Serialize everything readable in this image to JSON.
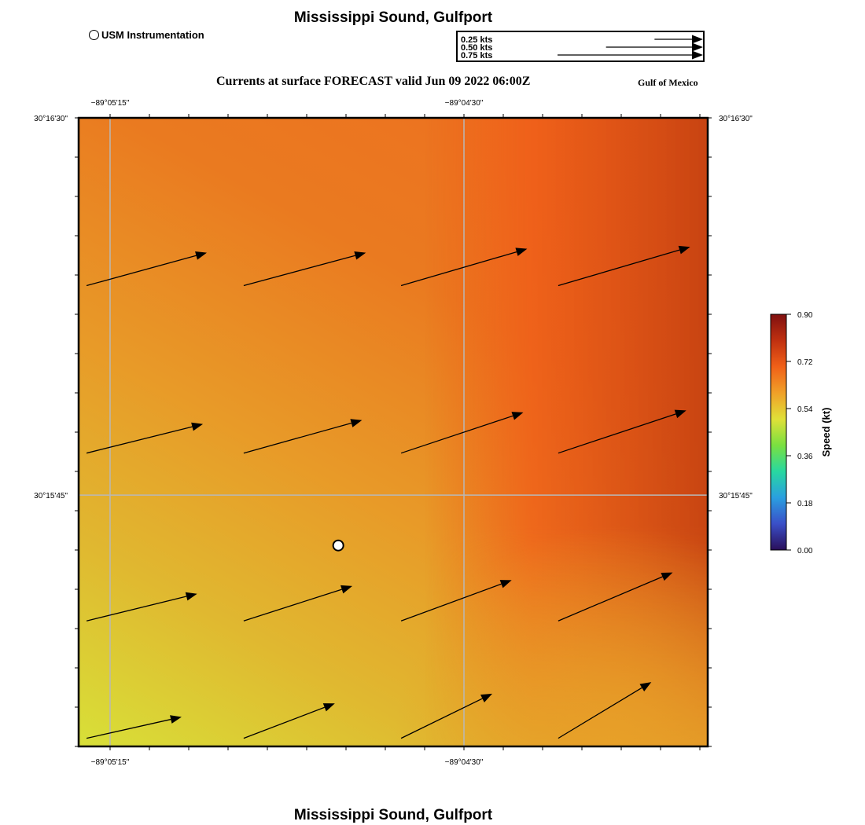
{
  "header": {
    "title": "Mississippi Sound, Gulfport",
    "legend_label": "USM Instrumentation",
    "forecast_title": "Currents at surface FORECAST valid Jun 09 2022 06:00Z",
    "region": "Gulf of Mexico"
  },
  "scale_legend": {
    "entries": [
      {
        "label": "0.25 kts",
        "value": 0.25
      },
      {
        "label": "0.50 kts",
        "value": 0.5
      },
      {
        "label": "0.75 kts",
        "value": 0.75
      }
    ]
  },
  "map": {
    "lon_ticks": [
      {
        "label": "−89°05'15\"",
        "lon": -89.0875
      },
      {
        "label": "−89°04'30\"",
        "lon": -89.075
      }
    ],
    "lat_ticks": [
      {
        "label": "30°16'30\"",
        "lat": 30.275
      },
      {
        "label": "30°15'45\"",
        "lat": 30.2625
      }
    ],
    "lon_range": [
      -89.08861,
      -89.06639
    ],
    "lat_range": [
      30.25417,
      30.275
    ],
    "station": {
      "name": "USM Instrumentation",
      "lon": -89.07944,
      "lat": 30.26083
    },
    "vector_scale_ref_kt": 0.75,
    "vectors": [
      {
        "lon": -89.08833,
        "lat": 30.26944,
        "u": 0.62,
        "v": 0.17
      },
      {
        "lon": -89.08278,
        "lat": 30.26944,
        "u": 0.63,
        "v": 0.17
      },
      {
        "lon": -89.07722,
        "lat": 30.26944,
        "u": 0.65,
        "v": 0.19
      },
      {
        "lon": -89.07167,
        "lat": 30.26944,
        "u": 0.68,
        "v": 0.2
      },
      {
        "lon": -89.08833,
        "lat": 30.26389,
        "u": 0.6,
        "v": 0.15
      },
      {
        "lon": -89.08278,
        "lat": 30.26389,
        "u": 0.61,
        "v": 0.17
      },
      {
        "lon": -89.07722,
        "lat": 30.26389,
        "u": 0.63,
        "v": 0.21
      },
      {
        "lon": -89.07167,
        "lat": 30.26389,
        "u": 0.66,
        "v": 0.22
      },
      {
        "lon": -89.08833,
        "lat": 30.25833,
        "u": 0.57,
        "v": 0.14
      },
      {
        "lon": -89.08278,
        "lat": 30.25833,
        "u": 0.56,
        "v": 0.18
      },
      {
        "lon": -89.07722,
        "lat": 30.25833,
        "u": 0.57,
        "v": 0.21
      },
      {
        "lon": -89.07167,
        "lat": 30.25833,
        "u": 0.59,
        "v": 0.25
      },
      {
        "lon": -89.08833,
        "lat": 30.25444,
        "u": 0.49,
        "v": 0.11
      },
      {
        "lon": -89.08278,
        "lat": 30.25444,
        "u": 0.47,
        "v": 0.18
      },
      {
        "lon": -89.07722,
        "lat": 30.25444,
        "u": 0.47,
        "v": 0.23
      },
      {
        "lon": -89.07167,
        "lat": 30.25444,
        "u": 0.48,
        "v": 0.29
      }
    ]
  },
  "colorbar": {
    "label": "Speed (kt)",
    "min": 0.0,
    "max": 0.9,
    "ticks": [
      {
        "label": "0.90",
        "value": 0.9
      },
      {
        "label": "0.72",
        "value": 0.72
      },
      {
        "label": "0.54",
        "value": 0.54
      },
      {
        "label": "0.36",
        "value": 0.36
      },
      {
        "label": "0.18",
        "value": 0.18
      },
      {
        "label": "0.00",
        "value": 0.0
      }
    ],
    "colors": [
      "#2a0f5a",
      "#3a4fc8",
      "#2a9fe0",
      "#28d8a0",
      "#7ae040",
      "#e0e038",
      "#f0a028",
      "#f06018",
      "#c03010",
      "#801010"
    ]
  },
  "footer": {
    "title": "Mississippi Sound, Gulfport"
  }
}
